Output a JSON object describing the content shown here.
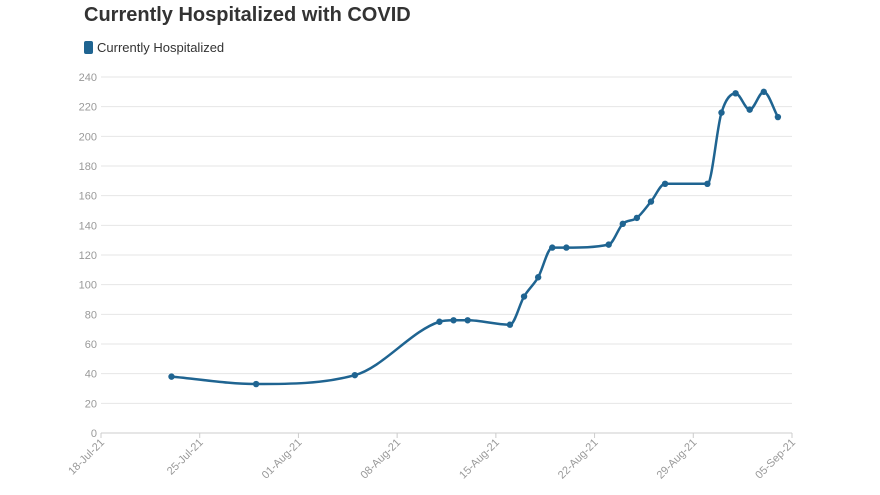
{
  "chart_data": {
    "type": "line",
    "title": "Currently Hospitalized with COVID",
    "xlabel": "",
    "ylabel": "",
    "ylim": [
      0,
      240
    ],
    "yticks": [
      0,
      20,
      40,
      60,
      80,
      100,
      120,
      140,
      160,
      180,
      200,
      220,
      240
    ],
    "xlim": [
      "2021-07-18",
      "2021-09-05"
    ],
    "xticks": [
      {
        "date": "2021-07-18",
        "label": "18-Jul-21"
      },
      {
        "date": "2021-07-25",
        "label": "25-Jul-21"
      },
      {
        "date": "2021-08-01",
        "label": "01-Aug-21"
      },
      {
        "date": "2021-08-08",
        "label": "08-Aug-21"
      },
      {
        "date": "2021-08-15",
        "label": "15-Aug-21"
      },
      {
        "date": "2021-08-22",
        "label": "22-Aug-21"
      },
      {
        "date": "2021-08-29",
        "label": "29-Aug-21"
      },
      {
        "date": "2021-09-05",
        "label": "05-Sep-21"
      }
    ],
    "grid": true,
    "legend_position": "top-left",
    "series": [
      {
        "name": "Currently Hospitalized",
        "color": "#1f6491",
        "points": [
          {
            "x": "2021-07-23",
            "y": 38
          },
          {
            "x": "2021-07-29",
            "y": 33
          },
          {
            "x": "2021-08-05",
            "y": 39
          },
          {
            "x": "2021-08-11",
            "y": 75
          },
          {
            "x": "2021-08-12",
            "y": 76
          },
          {
            "x": "2021-08-13",
            "y": 76
          },
          {
            "x": "2021-08-16",
            "y": 73
          },
          {
            "x": "2021-08-17",
            "y": 92
          },
          {
            "x": "2021-08-18",
            "y": 105
          },
          {
            "x": "2021-08-19",
            "y": 125
          },
          {
            "x": "2021-08-20",
            "y": 125
          },
          {
            "x": "2021-08-23",
            "y": 127
          },
          {
            "x": "2021-08-24",
            "y": 141
          },
          {
            "x": "2021-08-25",
            "y": 145
          },
          {
            "x": "2021-08-26",
            "y": 156
          },
          {
            "x": "2021-08-27",
            "y": 168
          },
          {
            "x": "2021-08-30",
            "y": 168
          },
          {
            "x": "2021-08-31",
            "y": 216
          },
          {
            "x": "2021-09-01",
            "y": 229
          },
          {
            "x": "2021-09-02",
            "y": 218
          },
          {
            "x": "2021-09-03",
            "y": 230
          },
          {
            "x": "2021-09-04",
            "y": 213
          }
        ]
      }
    ],
    "colors": {
      "grid": "#e6e6e6",
      "axis": "#cccccc",
      "tick_text": "#999999"
    }
  }
}
